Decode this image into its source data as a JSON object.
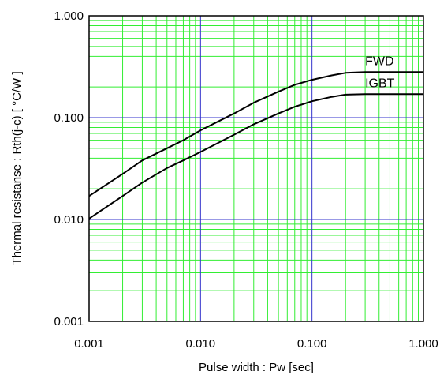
{
  "chart_data": {
    "type": "line",
    "xlabel": "Pulse width : Pw [sec]",
    "ylabel": "Thermal resistanse  :  Rth(j-c)  [ °C/W ]",
    "xscale": "log",
    "yscale": "log",
    "xlim": [
      0.001,
      1.0
    ],
    "ylim": [
      0.001,
      1.0
    ],
    "xticks": [
      "0.001",
      "0.010",
      "0.100",
      "1.000"
    ],
    "yticks": [
      "0.001",
      "0.010",
      "0.100",
      "1.000"
    ],
    "grid": true,
    "colors": {
      "minor_grid": "#33ee33",
      "major_grid": "#3333cc",
      "line": "#000000",
      "frame": "#000000"
    },
    "series": [
      {
        "name": "FWD",
        "x": [
          0.001,
          0.002,
          0.003,
          0.005,
          0.007,
          0.01,
          0.02,
          0.03,
          0.05,
          0.07,
          0.1,
          0.15,
          0.2,
          0.3,
          0.5,
          0.7,
          1.0
        ],
        "y": [
          0.017,
          0.028,
          0.038,
          0.05,
          0.06,
          0.075,
          0.11,
          0.14,
          0.18,
          0.21,
          0.235,
          0.26,
          0.275,
          0.28,
          0.28,
          0.28,
          0.28
        ]
      },
      {
        "name": "IGBT",
        "x": [
          0.001,
          0.002,
          0.003,
          0.005,
          0.007,
          0.01,
          0.02,
          0.03,
          0.05,
          0.07,
          0.1,
          0.15,
          0.2,
          0.3,
          0.5,
          0.7,
          1.0
        ],
        "y": [
          0.0102,
          0.017,
          0.023,
          0.032,
          0.038,
          0.046,
          0.068,
          0.086,
          0.11,
          0.128,
          0.145,
          0.16,
          0.168,
          0.17,
          0.17,
          0.17,
          0.17
        ]
      }
    ]
  }
}
